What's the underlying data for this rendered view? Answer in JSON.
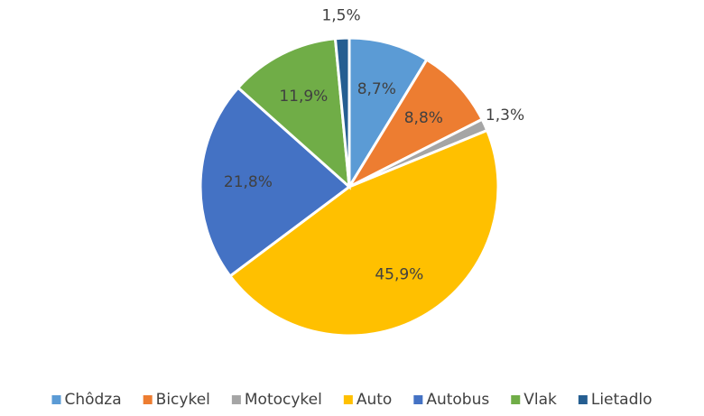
{
  "chart_data": {
    "type": "pie",
    "categories": [
      "Chôdza",
      "Bicykel",
      "Motocykel",
      "Auto",
      "Autobus",
      "Vlak",
      "Lietadlo"
    ],
    "values": [
      8.7,
      8.8,
      1.3,
      45.9,
      21.8,
      11.9,
      1.5
    ],
    "value_labels": [
      "8,7%",
      "8,8%",
      "1,3%",
      "45,9%",
      "21,8%",
      "11,9%",
      "1,5%"
    ],
    "colors": [
      "#5b9bd5",
      "#ed7d31",
      "#a5a5a5",
      "#ffc000",
      "#4472c4",
      "#70ad47",
      "#255e91"
    ],
    "legend": "bottom"
  }
}
